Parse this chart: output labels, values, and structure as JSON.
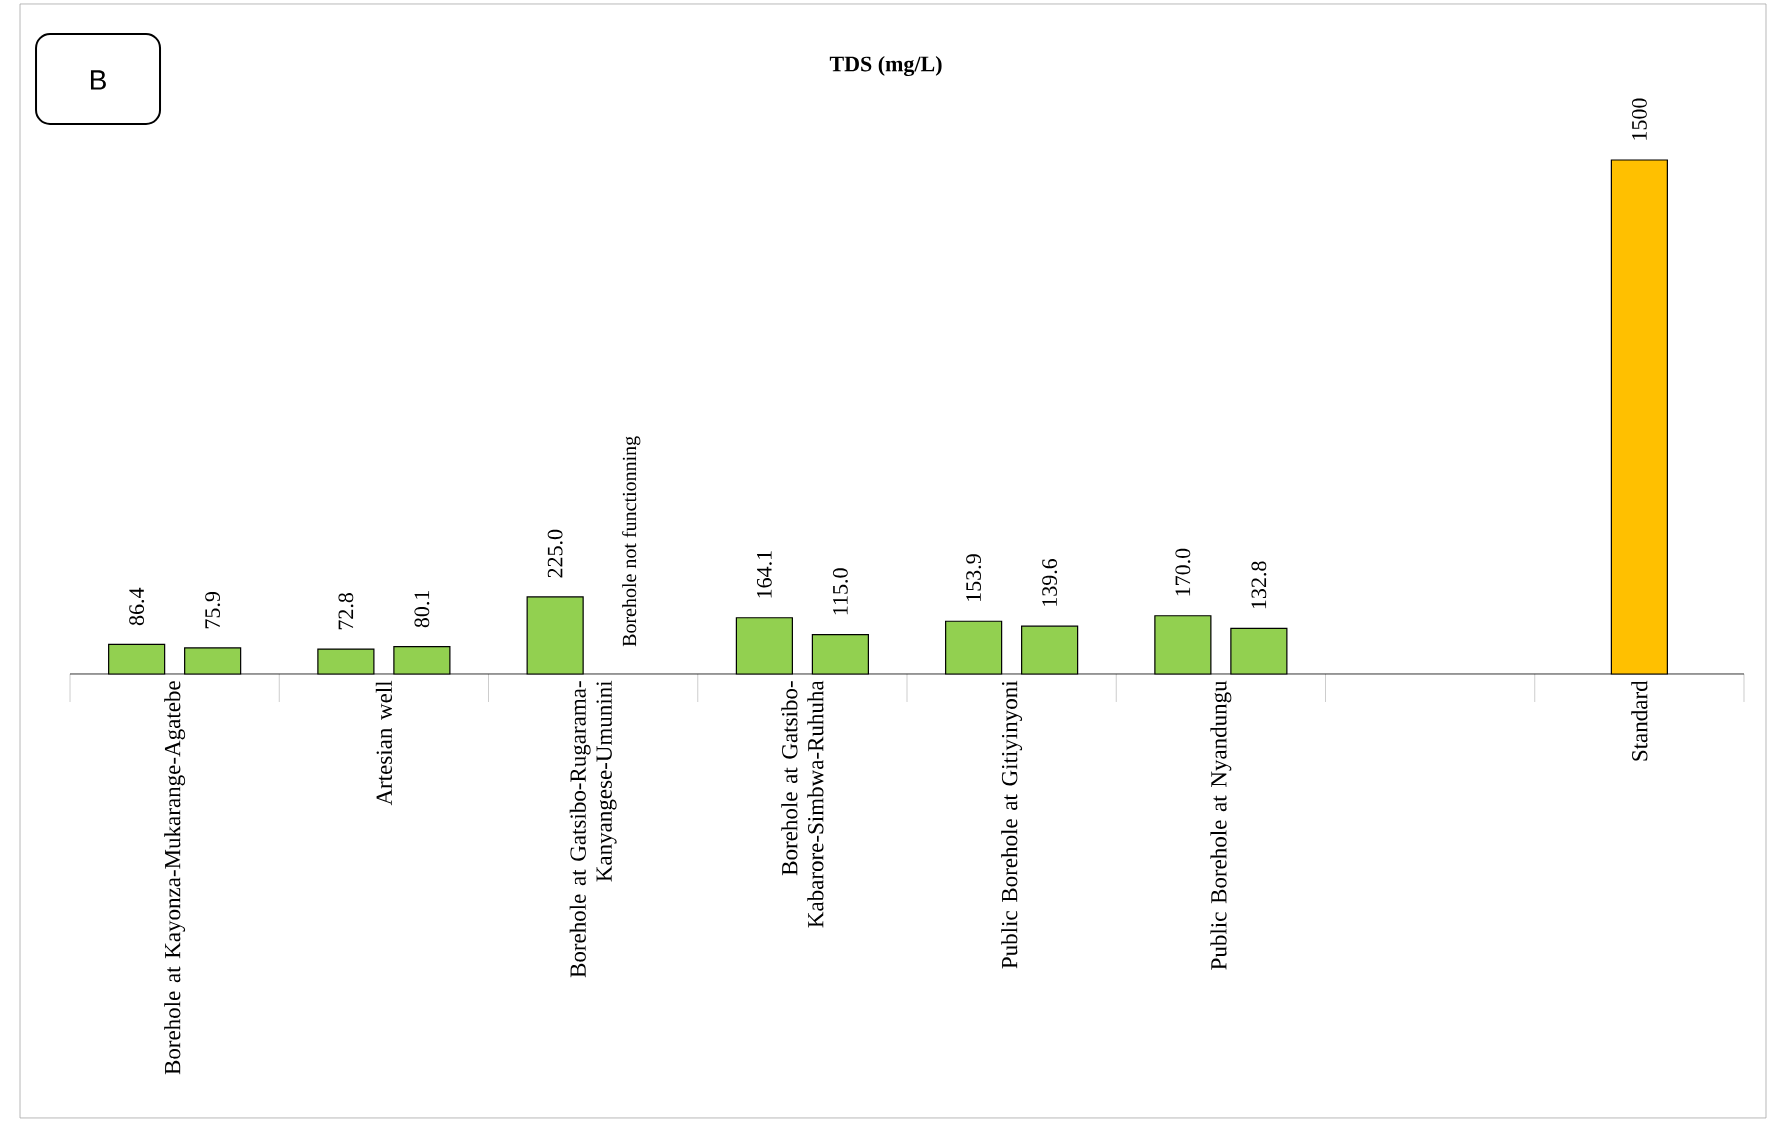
{
  "chart_data": {
    "type": "bar",
    "title": "TDS (mg/L)",
    "annotations": [
      "B",
      "Borehole not functionning"
    ],
    "categories": [
      "Borehole at Kayonza-Mukarange-Agatebe",
      "Artesian well",
      "Borehole at Gatsibo-Rugarama-Kanyangese-Umunini",
      "Borehole at Gatsibo-Kabarore-Simbwa-Ruhuha",
      "Public Borehole at Gitiyinyoni",
      "Public Borehole at Nyandungu",
      null,
      "Standard"
    ],
    "series": [
      {
        "color": "#92d050",
        "values": [
          86.4,
          72.8,
          225.0,
          164.1,
          153.9,
          170.0,
          null,
          null
        ],
        "value_labels": [
          "86.4",
          "72.8",
          "225.0",
          "164.1",
          "153.9",
          "170.0",
          null,
          null
        ]
      },
      {
        "color": "#92d050",
        "values": [
          75.9,
          80.1,
          null,
          115.0,
          139.6,
          132.8,
          null,
          null
        ],
        "value_labels": [
          "75.9",
          "80.1",
          null,
          "115.0",
          "139.6",
          "132.8",
          null,
          null
        ]
      },
      {
        "color": "#ffc000",
        "values": [
          null,
          null,
          null,
          null,
          null,
          null,
          null,
          1500
        ],
        "value_labels": [
          null,
          null,
          null,
          null,
          null,
          null,
          null,
          "1500"
        ]
      }
    ]
  }
}
